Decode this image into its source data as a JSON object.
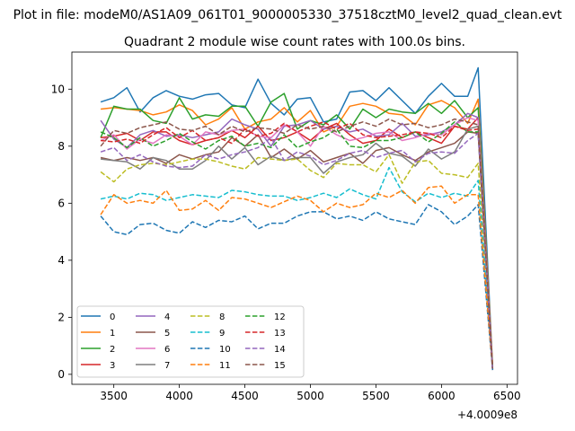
{
  "chart_data": {
    "type": "line",
    "suptitle": "Plot in file: modeM0/AS1A09_061T01_9000005330_37518cztM0_level2_quad_clean.evt",
    "title": "Quadrant 2 module wise count rates with 100.0s bins.",
    "xlabel": "",
    "ylabel": "",
    "x_offset_label": "+4.0009e8",
    "xlim": [
      3180,
      6580
    ],
    "ylim": [
      -0.35,
      11.3
    ],
    "xticks": [
      3500,
      4000,
      4500,
      5000,
      5500,
      6000,
      6500
    ],
    "yticks": [
      0,
      2,
      4,
      6,
      8,
      10
    ],
    "grid": false,
    "legend": {
      "placement": "lower-left",
      "columns": 4
    },
    "x": [
      3400,
      3500,
      3600,
      3700,
      3800,
      3900,
      4000,
      4100,
      4200,
      4300,
      4400,
      4500,
      4600,
      4700,
      4800,
      4900,
      5000,
      5100,
      5200,
      5300,
      5400,
      5500,
      5600,
      5700,
      5800,
      5900,
      6000,
      6100,
      6200,
      6280,
      6390
    ],
    "series": [
      {
        "name": "0",
        "color": "#1f77b4",
        "dash": "solid",
        "values": [
          9.55,
          9.7,
          10.05,
          9.2,
          9.7,
          9.95,
          9.75,
          9.65,
          9.8,
          9.85,
          9.45,
          9.35,
          10.35,
          9.5,
          9.1,
          9.65,
          9.7,
          8.85,
          8.95,
          9.9,
          9.95,
          9.6,
          10.05,
          9.6,
          9.15,
          9.75,
          10.2,
          9.75,
          9.75,
          10.75,
          0.25
        ]
      },
      {
        "name": "1",
        "color": "#ff7f0e",
        "dash": "solid",
        "values": [
          9.3,
          9.35,
          9.3,
          9.25,
          9.1,
          9.2,
          9.45,
          9.25,
          8.75,
          8.95,
          9.35,
          8.6,
          8.85,
          8.95,
          9.35,
          8.85,
          9.25,
          8.5,
          8.7,
          9.4,
          9.5,
          9.4,
          9.15,
          9.1,
          8.75,
          9.45,
          9.6,
          9.35,
          8.8,
          9.65,
          0.3
        ]
      },
      {
        "name": "2",
        "color": "#2ca02c",
        "dash": "solid",
        "values": [
          8.3,
          9.4,
          9.3,
          9.3,
          8.9,
          8.8,
          9.7,
          8.95,
          9.1,
          9.05,
          9.4,
          9.4,
          8.7,
          9.55,
          9.85,
          8.6,
          8.9,
          8.75,
          9.1,
          8.6,
          9.3,
          9.0,
          9.3,
          9.2,
          9.15,
          9.5,
          9.15,
          9.6,
          9.0,
          9.35,
          0.2
        ]
      },
      {
        "name": "3",
        "color": "#d62728",
        "dash": "solid",
        "values": [
          8.3,
          8.35,
          8.45,
          8.2,
          8.5,
          8.5,
          8.2,
          8.05,
          8.2,
          8.3,
          8.55,
          8.3,
          8.7,
          8.2,
          8.3,
          8.5,
          8.2,
          8.6,
          8.8,
          8.4,
          8.1,
          8.2,
          8.6,
          8.3,
          8.5,
          8.3,
          8.1,
          8.7,
          8.6,
          9.0,
          0.2
        ]
      },
      {
        "name": "4",
        "color": "#9467bd",
        "dash": "solid",
        "values": [
          8.9,
          8.25,
          7.95,
          8.4,
          8.55,
          8.35,
          8.4,
          8.3,
          8.4,
          8.5,
          8.95,
          8.75,
          8.6,
          8.0,
          8.7,
          8.75,
          8.9,
          8.6,
          8.7,
          8.5,
          8.6,
          8.35,
          8.4,
          8.8,
          8.35,
          8.4,
          8.5,
          8.75,
          9.15,
          9.0,
          0.2
        ]
      },
      {
        "name": "5",
        "color": "#8c564b",
        "dash": "solid",
        "values": [
          7.6,
          7.5,
          7.6,
          7.5,
          7.6,
          7.4,
          7.7,
          7.55,
          7.7,
          7.8,
          8.3,
          8.0,
          8.4,
          7.6,
          7.9,
          7.55,
          7.85,
          7.45,
          7.6,
          7.75,
          7.4,
          7.85,
          7.95,
          7.7,
          7.5,
          7.8,
          7.95,
          8.1,
          8.5,
          8.45,
          0.15
        ]
      },
      {
        "name": "6",
        "color": "#e377c2",
        "dash": "solid",
        "values": [
          8.2,
          8.4,
          7.9,
          8.25,
          8.1,
          8.4,
          8.35,
          8.05,
          8.5,
          8.4,
          8.55,
          8.6,
          8.35,
          8.3,
          8.75,
          8.5,
          8.0,
          8.7,
          8.4,
          8.2,
          8.3,
          8.45,
          8.5,
          8.2,
          8.3,
          8.45,
          8.4,
          8.75,
          9.0,
          8.9,
          0.2
        ]
      },
      {
        "name": "7",
        "color": "#7f7f7f",
        "dash": "solid",
        "values": [
          7.55,
          7.5,
          7.45,
          7.2,
          7.6,
          7.5,
          7.2,
          7.2,
          7.5,
          8.0,
          7.55,
          7.95,
          7.35,
          7.65,
          7.5,
          7.6,
          7.6,
          7.05,
          7.45,
          7.6,
          7.7,
          8.1,
          7.75,
          7.65,
          7.3,
          7.9,
          7.55,
          7.8,
          8.6,
          8.7,
          0.15
        ]
      },
      {
        "name": "8",
        "color": "#bcbd22",
        "dash": "dashed",
        "values": [
          7.1,
          6.75,
          7.2,
          7.35,
          7.4,
          7.35,
          7.45,
          7.55,
          7.55,
          7.45,
          7.3,
          7.2,
          7.6,
          7.55,
          7.5,
          7.55,
          7.15,
          6.9,
          7.4,
          7.35,
          7.35,
          7.1,
          7.7,
          6.7,
          7.45,
          7.5,
          7.05,
          7.0,
          6.9,
          7.4,
          0.3
        ]
      },
      {
        "name": "9",
        "color": "#17becf",
        "dash": "dashed",
        "values": [
          6.15,
          6.25,
          6.15,
          6.35,
          6.3,
          6.1,
          6.2,
          6.3,
          6.25,
          6.2,
          6.45,
          6.4,
          6.3,
          6.25,
          6.25,
          6.1,
          6.2,
          6.35,
          6.2,
          6.5,
          6.3,
          6.15,
          7.25,
          6.4,
          6.05,
          6.35,
          6.2,
          6.35,
          6.25,
          6.8,
          0.25
        ]
      },
      {
        "name": "10",
        "color": "#1f77b4",
        "dash": "dashed",
        "values": [
          5.55,
          5.0,
          4.9,
          5.25,
          5.3,
          5.05,
          4.95,
          5.35,
          5.15,
          5.4,
          5.35,
          5.55,
          5.1,
          5.3,
          5.3,
          5.55,
          5.7,
          5.7,
          5.45,
          5.55,
          5.4,
          5.7,
          5.45,
          5.35,
          5.25,
          5.95,
          5.7,
          5.25,
          5.55,
          5.95,
          0.15
        ]
      },
      {
        "name": "11",
        "color": "#ff7f0e",
        "dash": "dashed",
        "values": [
          5.6,
          6.3,
          6.0,
          6.1,
          6.0,
          6.45,
          5.75,
          5.8,
          6.1,
          5.75,
          6.2,
          6.15,
          6.0,
          5.85,
          6.05,
          6.25,
          6.1,
          5.7,
          6.0,
          5.85,
          5.95,
          6.35,
          6.2,
          6.45,
          6.0,
          6.55,
          6.6,
          6.0,
          6.3,
          6.3,
          0.2
        ]
      },
      {
        "name": "12",
        "color": "#2ca02c",
        "dash": "dashed",
        "values": [
          8.5,
          8.3,
          7.95,
          8.3,
          8.0,
          8.2,
          8.45,
          8.15,
          7.9,
          8.2,
          8.35,
          8.0,
          8.1,
          7.95,
          8.4,
          7.95,
          8.15,
          8.3,
          8.6,
          8.0,
          7.95,
          8.2,
          8.2,
          8.3,
          8.5,
          8.15,
          8.45,
          8.85,
          8.5,
          8.5,
          0.2
        ]
      },
      {
        "name": "13",
        "color": "#d62728",
        "dash": "dashed",
        "values": [
          8.2,
          8.15,
          8.25,
          8.1,
          8.4,
          8.65,
          8.3,
          8.55,
          8.2,
          8.3,
          8.1,
          8.6,
          8.35,
          8.45,
          8.8,
          8.5,
          8.7,
          8.85,
          8.6,
          8.8,
          8.4,
          8.3,
          8.35,
          8.4,
          8.5,
          8.45,
          8.3,
          8.7,
          8.55,
          8.6,
          0.2
        ]
      },
      {
        "name": "14",
        "color": "#9467bd",
        "dash": "dashed",
        "values": [
          7.8,
          7.95,
          7.5,
          7.7,
          7.45,
          7.3,
          7.25,
          7.3,
          7.7,
          7.55,
          7.7,
          7.8,
          7.95,
          8.3,
          7.5,
          7.8,
          7.65,
          7.35,
          7.5,
          7.75,
          7.85,
          7.6,
          7.75,
          7.85,
          7.45,
          7.75,
          7.8,
          7.75,
          8.2,
          8.45,
          0.15
        ]
      },
      {
        "name": "15",
        "color": "#8c564b",
        "dash": "dashed",
        "values": [
          8.0,
          8.55,
          8.45,
          8.65,
          8.75,
          8.85,
          8.6,
          8.55,
          8.7,
          8.4,
          8.7,
          8.5,
          8.65,
          8.6,
          8.45,
          8.75,
          8.6,
          8.7,
          8.5,
          8.7,
          8.85,
          8.7,
          8.95,
          8.75,
          8.8,
          8.65,
          8.75,
          8.95,
          8.85,
          8.75,
          0.2
        ]
      }
    ]
  }
}
